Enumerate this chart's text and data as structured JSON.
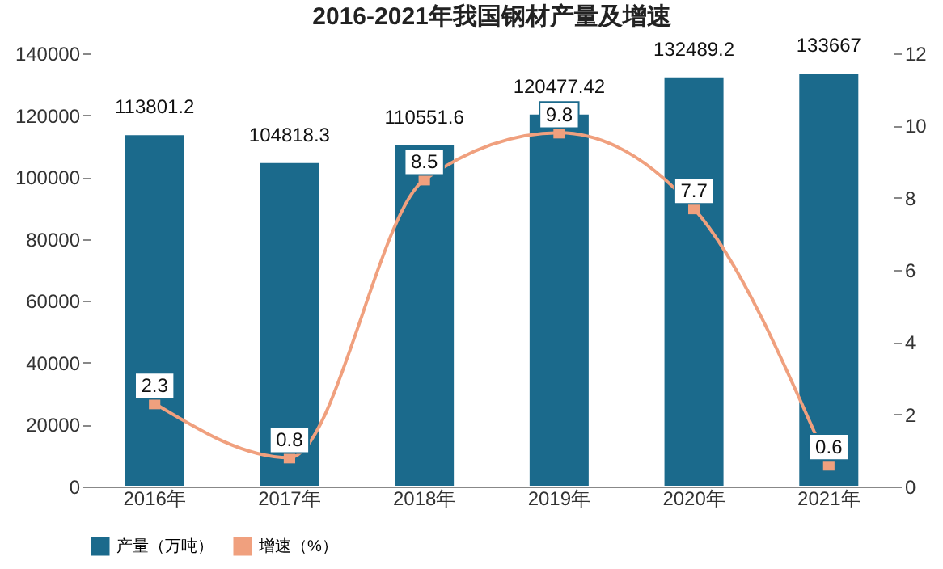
{
  "chart_data": {
    "type": "bar",
    "title": "2016-2021年我国钢材产量及增速",
    "categories": [
      "2016年",
      "2017年",
      "2018年",
      "2019年",
      "2020年",
      "2021年"
    ],
    "series": [
      {
        "name": "产量（万吨）",
        "color": "#1b6a8c",
        "values": [
          113801.2,
          104818.3,
          110551.6,
          120477.42,
          132489.2,
          133667
        ]
      },
      {
        "name": "增速（%）",
        "type": "line",
        "axis": "y2",
        "color": "#f0a07e",
        "values": [
          2.3,
          0.8,
          8.5,
          9.8,
          7.7,
          0.6
        ]
      }
    ],
    "ylim": [
      0,
      140000
    ],
    "yticks": [
      0,
      20000,
      40000,
      60000,
      80000,
      100000,
      120000,
      140000
    ],
    "y2lim": [
      0,
      12
    ],
    "y2ticks": [
      0,
      2,
      4,
      6,
      8,
      10,
      12
    ],
    "data_labels": true,
    "legend": "bottom",
    "marker": "square",
    "grid": false
  }
}
